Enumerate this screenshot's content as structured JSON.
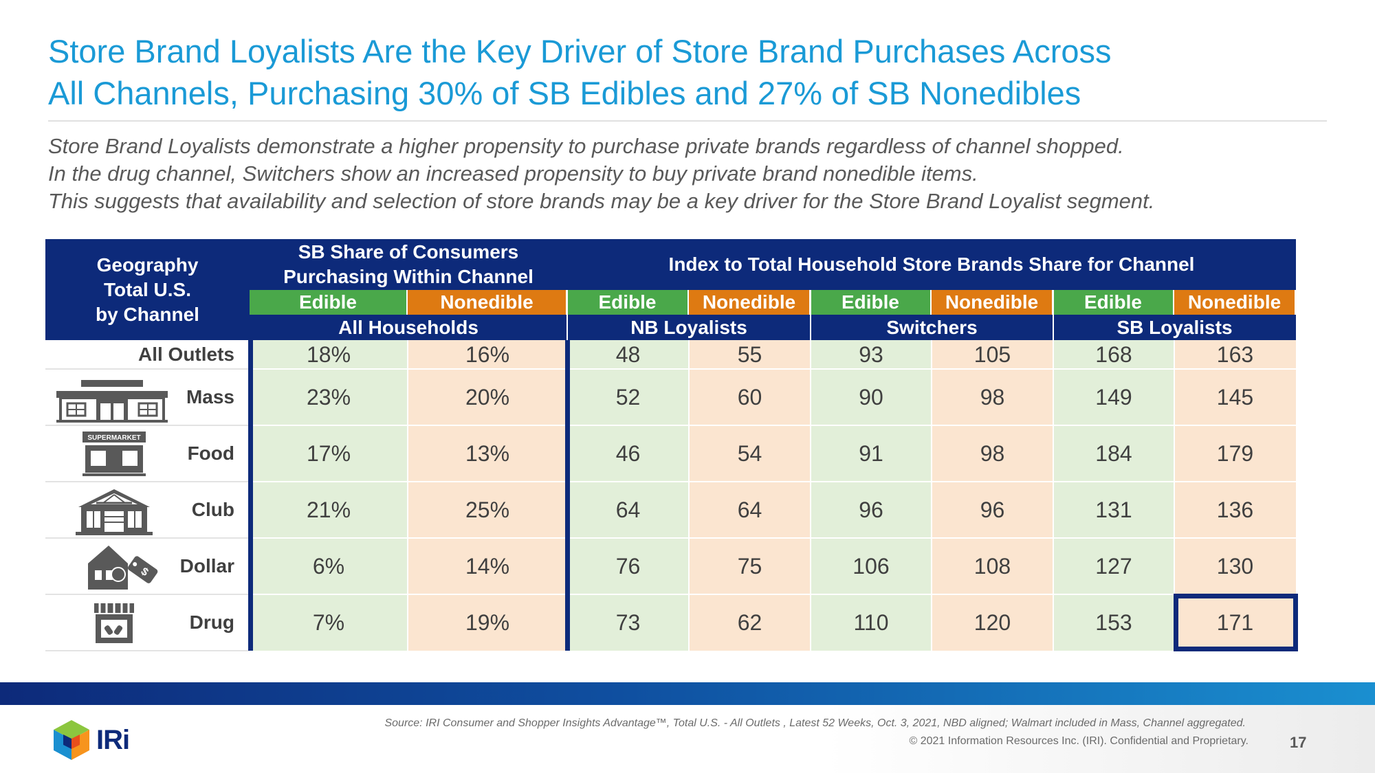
{
  "title": {
    "line1": "Store Brand Loyalists Are the Key Driver of Store Brand Purchases Across",
    "line2": "All Channels, Purchasing 30% of SB Edibles and 27% of SB Nonedibles"
  },
  "subtitle": {
    "line1": "Store Brand Loyalists demonstrate a higher propensity to purchase private brands regardless of channel shopped.",
    "line2": "In the drug channel, Switchers show an increased propensity to buy private brand nonedible items.",
    "line3": "This suggests that availability and selection of store brands may be a key driver for the Store Brand Loyalist segment."
  },
  "table": {
    "header_geo": [
      "Geography",
      "Total U.S.",
      "by Channel"
    ],
    "header_share": [
      "SB Share of Consumers",
      "Purchasing Within Channel"
    ],
    "header_index": "Index to Total Household Store Brands Share for Channel",
    "subheaders": [
      "Edible",
      "Nonedible",
      "Edible",
      "Nonedible",
      "Edible",
      "Nonedible",
      "Edible",
      "Nonedible"
    ],
    "groups": [
      "All Households",
      "NB Loyalists",
      "Switchers",
      "SB Loyalists"
    ],
    "rows": [
      {
        "label": "All Outlets",
        "icon": "",
        "values": [
          "18%",
          "16%",
          "48",
          "55",
          "93",
          "105",
          "168",
          "163"
        ]
      },
      {
        "label": "Mass",
        "icon": "mass-store-icon",
        "values": [
          "23%",
          "20%",
          "52",
          "60",
          "90",
          "98",
          "149",
          "145"
        ]
      },
      {
        "label": "Food",
        "icon": "supermarket-icon",
        "icon_text": "SUPERMARKET",
        "values": [
          "17%",
          "13%",
          "46",
          "54",
          "91",
          "98",
          "184",
          "179"
        ]
      },
      {
        "label": "Club",
        "icon": "warehouse-club-icon",
        "values": [
          "21%",
          "25%",
          "64",
          "64",
          "96",
          "96",
          "131",
          "136"
        ]
      },
      {
        "label": "Dollar",
        "icon": "dollar-store-icon",
        "values": [
          "6%",
          "14%",
          "76",
          "75",
          "106",
          "108",
          "127",
          "130"
        ]
      },
      {
        "label": "Drug",
        "icon": "drugstore-icon",
        "values": [
          "7%",
          "19%",
          "73",
          "62",
          "110",
          "120",
          "153",
          "171"
        ]
      }
    ],
    "highlighted_cell": "171"
  },
  "colors": {
    "title": "#1a9ad6",
    "header_navy": "#0d2a7a",
    "edible_green": "#4aa84a",
    "nonedible_orange": "#de7a12",
    "edible_cell": "#e2efd9",
    "nonedible_cell": "#fbe5d0"
  },
  "footer": {
    "source": "Source: IRI Consumer and Shopper Insights Advantage™, Total U.S. - All Outlets , Latest 52 Weeks, Oct. 3, 2021, NBD aligned; Walmart included in Mass, Channel aggregated.",
    "copyright": "© 2021 Information Resources Inc. (IRI). Confidential and Proprietary.",
    "page_number": "17",
    "logo_text": "IRi"
  }
}
